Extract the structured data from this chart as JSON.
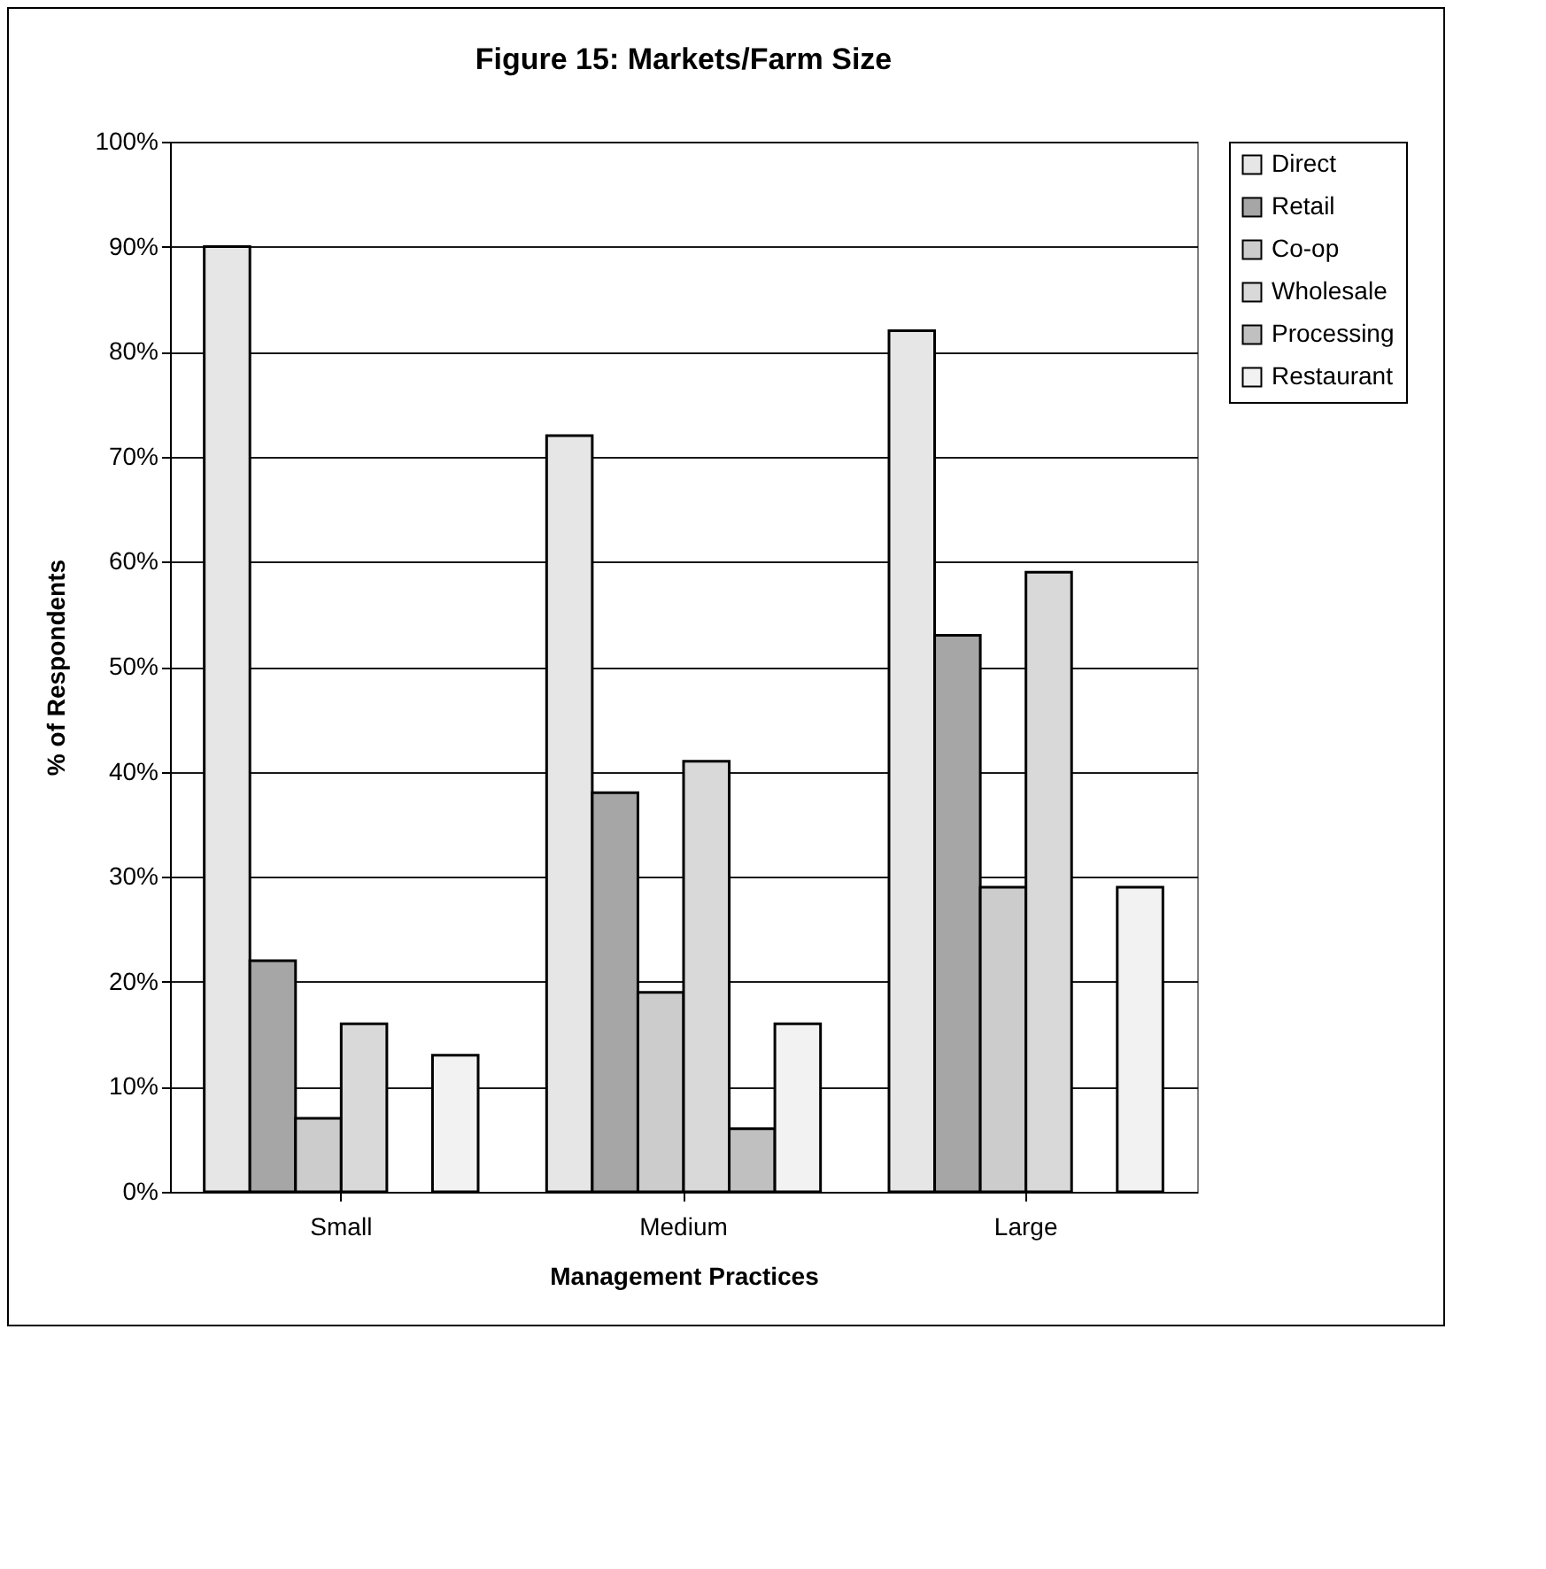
{
  "chart_data": {
    "type": "bar",
    "title": "Figure 15: Markets/Farm Size",
    "xlabel": "Management Practices",
    "ylabel": "% of Respondents",
    "categories": [
      "Small",
      "Medium",
      "Large"
    ],
    "series": [
      {
        "name": "Direct",
        "color": "#e6e6e6",
        "values": [
          90,
          72,
          82
        ]
      },
      {
        "name": "Retail",
        "color": "#a6a6a6",
        "values": [
          22,
          38,
          53
        ]
      },
      {
        "name": "Co-op",
        "color": "#cccccc",
        "values": [
          7,
          19,
          29
        ]
      },
      {
        "name": "Wholesale",
        "color": "#d9d9d9",
        "values": [
          16,
          41,
          59
        ]
      },
      {
        "name": "Processing",
        "color": "#c0c0c0",
        "values": [
          null,
          6,
          null
        ]
      },
      {
        "name": "Restaurant",
        "color": "#f2f2f2",
        "values": [
          13,
          16,
          29
        ]
      }
    ],
    "ylim": [
      0,
      100
    ],
    "yticks": [
      {
        "value": 0,
        "label": "0%"
      },
      {
        "value": 10,
        "label": "10%"
      },
      {
        "value": 20,
        "label": "20%"
      },
      {
        "value": 30,
        "label": "30%"
      },
      {
        "value": 40,
        "label": "40%"
      },
      {
        "value": 50,
        "label": "50%"
      },
      {
        "value": 60,
        "label": "60%"
      },
      {
        "value": 70,
        "label": "70%"
      },
      {
        "value": 80,
        "label": "80%"
      },
      {
        "value": 90,
        "label": "90%"
      },
      {
        "value": 100,
        "label": "100%"
      }
    ],
    "grid": "y",
    "legend": "right"
  }
}
